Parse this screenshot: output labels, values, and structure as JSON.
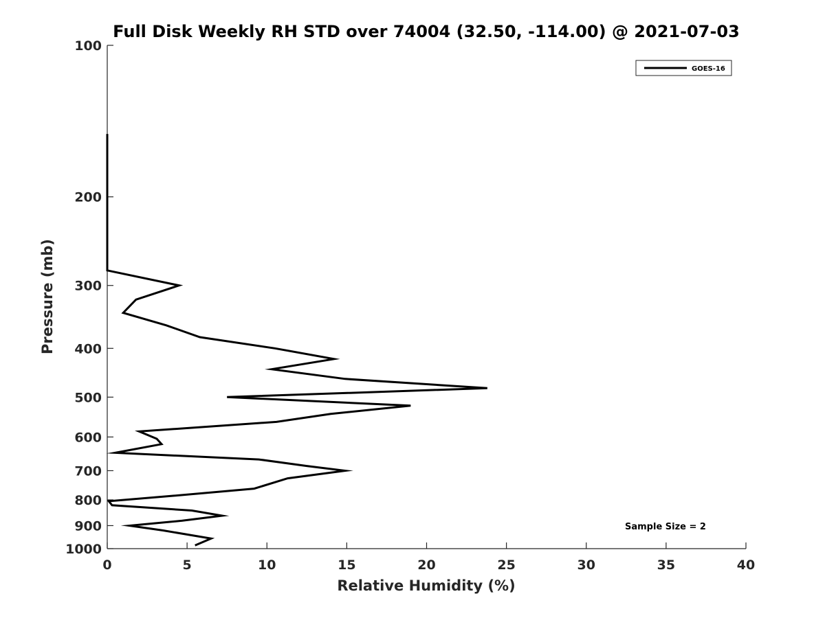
{
  "chart_data": {
    "type": "line",
    "title": "Full Disk Weekly RH STD over 74004 (32.50, -114.00) @ 2021-07-03",
    "xlabel": "Relative Humidity (%)",
    "ylabel": "Pressure (mb)",
    "xlim": [
      0,
      40
    ],
    "ylim": [
      100,
      1000
    ],
    "y_scale": "log",
    "y_reversed": true,
    "grid": false,
    "legend_position": "top-right",
    "x_ticks": [
      "0",
      "5",
      "10",
      "15",
      "20",
      "25",
      "30",
      "35",
      "40"
    ],
    "y_ticks": [
      "100",
      "200",
      "300",
      "400",
      "500",
      "600",
      "700",
      "800",
      "900",
      "1000"
    ],
    "annotation": "Sample Size = 2",
    "series": [
      {
        "name": "GOES-16",
        "color": "#000000",
        "points": [
          {
            "x": 0.0,
            "y": 150
          },
          {
            "x": 0.0,
            "y": 200
          },
          {
            "x": 0.0,
            "y": 280
          },
          {
            "x": 4.5,
            "y": 300
          },
          {
            "x": 1.8,
            "y": 320
          },
          {
            "x": 1.0,
            "y": 340
          },
          {
            "x": 3.7,
            "y": 360
          },
          {
            "x": 5.8,
            "y": 380
          },
          {
            "x": 10.5,
            "y": 400
          },
          {
            "x": 14.2,
            "y": 420
          },
          {
            "x": 10.3,
            "y": 440
          },
          {
            "x": 14.9,
            "y": 460
          },
          {
            "x": 23.8,
            "y": 480
          },
          {
            "x": 7.5,
            "y": 500
          },
          {
            "x": 19.0,
            "y": 520
          },
          {
            "x": 14.0,
            "y": 540
          },
          {
            "x": 10.6,
            "y": 560
          },
          {
            "x": 2.0,
            "y": 585
          },
          {
            "x": 3.1,
            "y": 605
          },
          {
            "x": 3.4,
            "y": 620
          },
          {
            "x": 0.5,
            "y": 645
          },
          {
            "x": 9.5,
            "y": 665
          },
          {
            "x": 12.5,
            "y": 685
          },
          {
            "x": 14.9,
            "y": 700
          },
          {
            "x": 11.3,
            "y": 725
          },
          {
            "x": 9.2,
            "y": 760
          },
          {
            "x": 4.2,
            "y": 785
          },
          {
            "x": 0.1,
            "y": 805
          },
          {
            "x": 0.3,
            "y": 820
          },
          {
            "x": 5.3,
            "y": 840
          },
          {
            "x": 7.2,
            "y": 860
          },
          {
            "x": 4.7,
            "y": 880
          },
          {
            "x": 1.4,
            "y": 900
          },
          {
            "x": 3.5,
            "y": 920
          },
          {
            "x": 6.5,
            "y": 955
          },
          {
            "x": 5.5,
            "y": 985
          }
        ]
      }
    ]
  }
}
